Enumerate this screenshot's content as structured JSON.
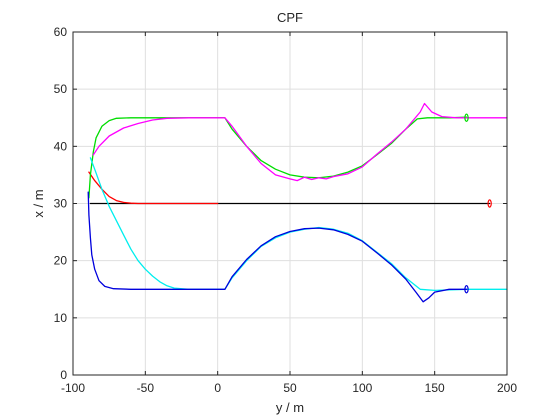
{
  "chart_data": {
    "type": "line",
    "title": "CPF",
    "xlabel": "y / m",
    "ylabel": "x / m",
    "xlim": [
      -100,
      200
    ],
    "ylim": [
      0,
      60
    ],
    "xticks": [
      -100,
      -50,
      0,
      50,
      100,
      150,
      200
    ],
    "yticks": [
      0,
      10,
      20,
      30,
      40,
      50,
      60
    ],
    "grid": true,
    "series": [
      {
        "color": "#000000",
        "points": [
          [
            -88,
            30
          ],
          [
            -80,
            30
          ],
          [
            0,
            30
          ],
          [
            100,
            30
          ],
          [
            188,
            30
          ]
        ],
        "marker": {
          "x": 188,
          "y": 30,
          "color": "#ff0000"
        }
      },
      {
        "color": "#ff0000",
        "points": [
          [
            -89,
            35.5
          ],
          [
            -85,
            34
          ],
          [
            -80,
            32.5
          ],
          [
            -75,
            31.2
          ],
          [
            -70,
            30.5
          ],
          [
            -65,
            30.2
          ],
          [
            -60,
            30.05
          ],
          [
            -55,
            30
          ],
          [
            -40,
            30
          ],
          [
            0,
            30
          ]
        ]
      },
      {
        "color": "#00dd00",
        "points": [
          [
            -89,
            31
          ],
          [
            -88,
            35
          ],
          [
            -86,
            39
          ],
          [
            -84,
            41.5
          ],
          [
            -80,
            43.5
          ],
          [
            -75,
            44.5
          ],
          [
            -70,
            44.9
          ],
          [
            -60,
            45
          ],
          [
            -30,
            45
          ],
          [
            5,
            45
          ],
          [
            10,
            43
          ],
          [
            20,
            40
          ],
          [
            30,
            37.5
          ],
          [
            40,
            36
          ],
          [
            50,
            35
          ],
          [
            60,
            34.6
          ],
          [
            70,
            34.5
          ],
          [
            80,
            34.8
          ],
          [
            90,
            35.5
          ],
          [
            100,
            36.6
          ],
          [
            110,
            38.5
          ],
          [
            120,
            40.5
          ],
          [
            130,
            43
          ],
          [
            138,
            44.8
          ],
          [
            145,
            45
          ],
          [
            160,
            45
          ],
          [
            172,
            45.1
          ]
        ],
        "marker": {
          "x": 172,
          "y": 45,
          "color": "#00dd00"
        }
      },
      {
        "color": "#ff00ff",
        "points": [
          [
            -86,
            38.5
          ],
          [
            -82,
            40
          ],
          [
            -75,
            41.8
          ],
          [
            -65,
            43.2
          ],
          [
            -55,
            44
          ],
          [
            -45,
            44.6
          ],
          [
            -35,
            44.9
          ],
          [
            -20,
            45
          ],
          [
            5,
            45
          ],
          [
            10,
            43.5
          ],
          [
            20,
            40
          ],
          [
            30,
            37
          ],
          [
            40,
            35
          ],
          [
            50,
            34.3
          ],
          [
            55,
            34
          ],
          [
            60,
            34.6
          ],
          [
            65,
            34.2
          ],
          [
            70,
            34.5
          ],
          [
            75,
            34.3
          ],
          [
            80,
            34.7
          ],
          [
            90,
            35.2
          ],
          [
            100,
            36.4
          ],
          [
            110,
            38.6
          ],
          [
            120,
            40.7
          ],
          [
            130,
            43
          ],
          [
            140,
            46
          ],
          [
            143,
            47.5
          ],
          [
            148,
            46
          ],
          [
            155,
            45.2
          ],
          [
            165,
            45
          ],
          [
            200,
            45
          ]
        ]
      },
      {
        "color": "#00eeee",
        "points": [
          [
            -88,
            38
          ],
          [
            -85,
            36
          ],
          [
            -80,
            32.5
          ],
          [
            -75,
            29.5
          ],
          [
            -70,
            27
          ],
          [
            -65,
            24.5
          ],
          [
            -60,
            22
          ],
          [
            -55,
            20
          ],
          [
            -50,
            18.5
          ],
          [
            -45,
            17.3
          ],
          [
            -40,
            16.3
          ],
          [
            -35,
            15.6
          ],
          [
            -30,
            15.2
          ],
          [
            -20,
            15
          ],
          [
            5,
            15
          ],
          [
            10,
            17
          ],
          [
            20,
            20
          ],
          [
            30,
            22.5
          ],
          [
            40,
            24
          ],
          [
            50,
            25
          ],
          [
            60,
            25.5
          ],
          [
            70,
            25.8
          ],
          [
            80,
            25.5
          ],
          [
            90,
            24.8
          ],
          [
            100,
            23.5
          ],
          [
            110,
            21.5
          ],
          [
            120,
            19.5
          ],
          [
            130,
            17
          ],
          [
            140,
            15
          ],
          [
            150,
            14.8
          ],
          [
            172,
            15
          ],
          [
            200,
            15
          ]
        ]
      },
      {
        "color": "#0000dd",
        "points": [
          [
            -89.5,
            32
          ],
          [
            -89,
            28
          ],
          [
            -88,
            24
          ],
          [
            -87,
            21
          ],
          [
            -85,
            18.5
          ],
          [
            -82,
            16.5
          ],
          [
            -78,
            15.5
          ],
          [
            -72,
            15.1
          ],
          [
            -60,
            15
          ],
          [
            0,
            15
          ],
          [
            5,
            15
          ],
          [
            10,
            17.2
          ],
          [
            20,
            20.2
          ],
          [
            30,
            22.6
          ],
          [
            40,
            24.2
          ],
          [
            50,
            25.1
          ],
          [
            60,
            25.6
          ],
          [
            70,
            25.7
          ],
          [
            80,
            25.4
          ],
          [
            90,
            24.6
          ],
          [
            100,
            23.4
          ],
          [
            110,
            21.4
          ],
          [
            120,
            19.3
          ],
          [
            130,
            16.8
          ],
          [
            137,
            14.5
          ],
          [
            142,
            12.8
          ],
          [
            146,
            13.5
          ],
          [
            150,
            14.5
          ],
          [
            160,
            15
          ],
          [
            172,
            15
          ]
        ],
        "marker": {
          "x": 172,
          "y": 15,
          "color": "#0000dd"
        }
      }
    ]
  }
}
